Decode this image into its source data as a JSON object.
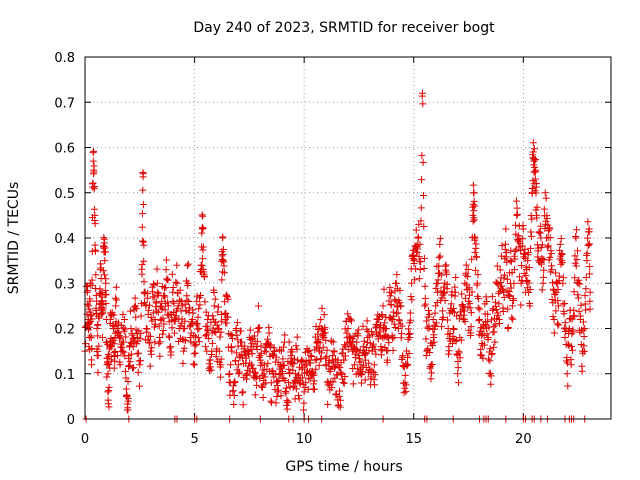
{
  "chart_data": {
    "type": "scatter",
    "title": "Day 240 of 2023, SRMTID for receiver bogt",
    "xlabel": "GPS time / hours",
    "ylabel": "SRMTID / TECUs",
    "xlim": [
      0,
      24
    ],
    "ylim": [
      0,
      0.8
    ],
    "xticks": [
      {
        "value": 0,
        "label": "0"
      },
      {
        "value": 5,
        "label": "5"
      },
      {
        "value": 10,
        "label": "10"
      },
      {
        "value": 15,
        "label": "15"
      },
      {
        "value": 20,
        "label": "20"
      }
    ],
    "yticks": [
      {
        "value": 0,
        "label": "0"
      },
      {
        "value": 0.1,
        "label": "0.1"
      },
      {
        "value": 0.2,
        "label": "0.2"
      },
      {
        "value": 0.3,
        "label": "0.3"
      },
      {
        "value": 0.4,
        "label": "0.4"
      },
      {
        "value": 0.5,
        "label": "0.5"
      },
      {
        "value": 0.6,
        "label": "0.6"
      },
      {
        "value": 0.7,
        "label": "0.7"
      },
      {
        "value": 0.8,
        "label": "0.8"
      }
    ],
    "grid": true,
    "marker": "+",
    "color": "#e00000",
    "series": [
      {
        "name": "SRMTID",
        "points": [
          [
            0.0,
            0.15
          ],
          [
            0.1,
            0.28
          ],
          [
            0.15,
            0.22
          ],
          [
            0.2,
            0.18
          ],
          [
            0.25,
            0.3
          ],
          [
            0.3,
            0.12
          ],
          [
            0.35,
            0.52
          ],
          [
            0.4,
            0.55
          ],
          [
            0.45,
            0.45
          ],
          [
            0.5,
            0.24
          ],
          [
            0.55,
            0.2
          ],
          [
            0.6,
            0.14
          ],
          [
            0.7,
            0.33
          ],
          [
            0.75,
            0.26
          ],
          [
            0.8,
            0.18
          ],
          [
            0.85,
            0.38
          ],
          [
            0.9,
            0.35
          ],
          [
            0.95,
            0.3
          ],
          [
            1.0,
            0.12
          ],
          [
            1.05,
            0.1
          ],
          [
            1.1,
            0.07
          ],
          [
            1.15,
            0.22
          ],
          [
            1.2,
            0.16
          ],
          [
            1.3,
            0.2
          ],
          [
            1.35,
            0.14
          ],
          [
            1.4,
            0.25
          ],
          [
            1.5,
            0.19
          ],
          [
            1.6,
            0.12
          ],
          [
            1.7,
            0.17
          ],
          [
            1.8,
            0.22
          ],
          [
            1.9,
            0.05
          ],
          [
            1.95,
            0.025
          ],
          [
            2.0,
            0.14
          ],
          [
            2.1,
            0.2
          ],
          [
            2.2,
            0.16
          ],
          [
            2.3,
            0.25
          ],
          [
            2.4,
            0.18
          ],
          [
            2.5,
            0.12
          ],
          [
            2.6,
            0.32
          ],
          [
            2.65,
            0.535
          ],
          [
            2.7,
            0.28
          ],
          [
            2.8,
            0.2
          ],
          [
            2.9,
            0.24
          ],
          [
            3.0,
            0.15
          ],
          [
            3.1,
            0.27
          ],
          [
            3.2,
            0.22
          ],
          [
            3.3,
            0.3
          ],
          [
            3.4,
            0.18
          ],
          [
            3.5,
            0.26
          ],
          [
            3.6,
            0.21
          ],
          [
            3.7,
            0.33
          ],
          [
            3.8,
            0.25
          ],
          [
            3.9,
            0.16
          ],
          [
            4.0,
            0.28
          ],
          [
            4.1,
            0.22
          ],
          [
            4.2,
            0.3
          ],
          [
            4.3,
            0.2
          ],
          [
            4.4,
            0.26
          ],
          [
            4.5,
            0.15
          ],
          [
            4.6,
            0.24
          ],
          [
            4.7,
            0.3
          ],
          [
            4.8,
            0.18
          ],
          [
            4.9,
            0.22
          ],
          [
            5.0,
            0.12
          ],
          [
            5.1,
            0.26
          ],
          [
            5.2,
            0.2
          ],
          [
            5.3,
            0.34
          ],
          [
            5.35,
            0.42
          ],
          [
            5.4,
            0.38
          ],
          [
            5.5,
            0.16
          ],
          [
            5.6,
            0.22
          ],
          [
            5.7,
            0.13
          ],
          [
            5.8,
            0.19
          ],
          [
            5.9,
            0.25
          ],
          [
            6.0,
            0.15
          ],
          [
            6.1,
            0.2
          ],
          [
            6.2,
            0.12
          ],
          [
            6.25,
            0.37
          ],
          [
            6.3,
            0.35
          ],
          [
            6.4,
            0.22
          ],
          [
            6.5,
            0.27
          ],
          [
            6.6,
            0.1
          ],
          [
            6.7,
            0.15
          ],
          [
            6.8,
            0.08
          ],
          [
            6.9,
            0.2
          ],
          [
            7.0,
            0.12
          ],
          [
            7.1,
            0.17
          ],
          [
            7.2,
            0.06
          ],
          [
            7.3,
            0.14
          ],
          [
            7.4,
            0.1
          ],
          [
            7.5,
            0.18
          ],
          [
            7.6,
            0.12
          ],
          [
            7.7,
            0.16
          ],
          [
            7.8,
            0.09
          ],
          [
            7.9,
            0.2
          ],
          [
            8.0,
            0.13
          ],
          [
            8.1,
            0.07
          ],
          [
            8.2,
            0.15
          ],
          [
            8.3,
            0.11
          ],
          [
            8.4,
            0.19
          ],
          [
            8.5,
            0.08
          ],
          [
            8.6,
            0.14
          ],
          [
            8.7,
            0.1
          ],
          [
            8.8,
            0.06
          ],
          [
            8.9,
            0.12
          ],
          [
            9.0,
            0.09
          ],
          [
            9.1,
            0.17
          ],
          [
            9.2,
            0.03
          ],
          [
            9.3,
            0.11
          ],
          [
            9.4,
            0.14
          ],
          [
            9.5,
            0.07
          ],
          [
            9.6,
            0.1
          ],
          [
            9.7,
            0.13
          ],
          [
            9.8,
            0.08
          ],
          [
            9.9,
            0.11
          ],
          [
            10.0,
            0.06
          ],
          [
            10.1,
            0.12
          ],
          [
            10.2,
            0.09
          ],
          [
            10.3,
            0.14
          ],
          [
            10.4,
            0.1
          ],
          [
            10.5,
            0.13
          ],
          [
            10.6,
            0.17
          ],
          [
            10.7,
            0.15
          ],
          [
            10.8,
            0.2
          ],
          [
            10.9,
            0.18
          ],
          [
            11.0,
            0.12
          ],
          [
            11.1,
            0.08
          ],
          [
            11.2,
            0.11
          ],
          [
            11.3,
            0.14
          ],
          [
            11.4,
            0.09
          ],
          [
            11.5,
            0.12
          ],
          [
            11.6,
            0.05
          ],
          [
            11.7,
            0.1
          ],
          [
            11.8,
            0.13
          ],
          [
            11.9,
            0.16
          ],
          [
            12.0,
            0.2
          ],
          [
            12.1,
            0.18
          ],
          [
            12.2,
            0.15
          ],
          [
            12.3,
            0.12
          ],
          [
            12.4,
            0.17
          ],
          [
            12.5,
            0.14
          ],
          [
            12.6,
            0.1
          ],
          [
            12.7,
            0.16
          ],
          [
            12.8,
            0.13
          ],
          [
            12.9,
            0.18
          ],
          [
            13.0,
            0.11
          ],
          [
            13.1,
            0.15
          ],
          [
            13.2,
            0.12
          ],
          [
            13.3,
            0.19
          ],
          [
            13.4,
            0.22
          ],
          [
            13.5,
            0.16
          ],
          [
            13.6,
            0.25
          ],
          [
            13.7,
            0.2
          ],
          [
            13.8,
            0.13
          ],
          [
            13.9,
            0.28
          ],
          [
            14.0,
            0.22
          ],
          [
            14.1,
            0.18
          ],
          [
            14.2,
            0.3
          ],
          [
            14.3,
            0.2
          ],
          [
            14.4,
            0.25
          ],
          [
            14.5,
            0.14
          ],
          [
            14.6,
            0.08
          ],
          [
            14.7,
            0.12
          ],
          [
            14.8,
            0.18
          ],
          [
            14.9,
            0.3
          ],
          [
            15.0,
            0.35
          ],
          [
            15.1,
            0.38
          ],
          [
            15.2,
            0.4
          ],
          [
            15.3,
            0.33
          ],
          [
            15.4,
            0.72
          ],
          [
            15.5,
            0.25
          ],
          [
            15.6,
            0.15
          ],
          [
            15.7,
            0.2
          ],
          [
            15.8,
            0.12
          ],
          [
            15.9,
            0.18
          ],
          [
            16.0,
            0.25
          ],
          [
            16.1,
            0.3
          ],
          [
            16.2,
            0.36
          ],
          [
            16.3,
            0.22
          ],
          [
            16.4,
            0.28
          ],
          [
            16.5,
            0.32
          ],
          [
            16.6,
            0.16
          ],
          [
            16.7,
            0.24
          ],
          [
            16.8,
            0.2
          ],
          [
            16.9,
            0.28
          ],
          [
            17.0,
            0.1
          ],
          [
            17.1,
            0.18
          ],
          [
            17.2,
            0.25
          ],
          [
            17.3,
            0.22
          ],
          [
            17.4,
            0.34
          ],
          [
            17.5,
            0.26
          ],
          [
            17.6,
            0.19
          ],
          [
            17.7,
            0.45
          ],
          [
            17.75,
            0.5
          ],
          [
            17.8,
            0.4
          ],
          [
            17.9,
            0.3
          ],
          [
            18.0,
            0.22
          ],
          [
            18.1,
            0.14
          ],
          [
            18.2,
            0.2
          ],
          [
            18.3,
            0.27
          ],
          [
            18.4,
            0.18
          ],
          [
            18.5,
            0.1
          ],
          [
            18.6,
            0.24
          ],
          [
            18.7,
            0.17
          ],
          [
            18.8,
            0.3
          ],
          [
            18.9,
            0.22
          ],
          [
            19.0,
            0.36
          ],
          [
            19.1,
            0.28
          ],
          [
            19.2,
            0.42
          ],
          [
            19.3,
            0.2
          ],
          [
            19.4,
            0.35
          ],
          [
            19.5,
            0.25
          ],
          [
            19.6,
            0.33
          ],
          [
            19.7,
            0.45
          ],
          [
            19.8,
            0.38
          ],
          [
            19.9,
            0.3
          ],
          [
            20.0,
            0.42
          ],
          [
            20.1,
            0.28
          ],
          [
            20.2,
            0.35
          ],
          [
            20.3,
            0.25
          ],
          [
            20.4,
            0.5
          ],
          [
            20.45,
            0.59
          ],
          [
            20.5,
            0.57
          ],
          [
            20.55,
            0.53
          ],
          [
            20.6,
            0.45
          ],
          [
            20.7,
            0.35
          ],
          [
            20.8,
            0.4
          ],
          [
            20.9,
            0.3
          ],
          [
            21.0,
            0.5
          ],
          [
            21.1,
            0.38
          ],
          [
            21.2,
            0.42
          ],
          [
            21.3,
            0.33
          ],
          [
            21.4,
            0.22
          ],
          [
            21.5,
            0.28
          ],
          [
            21.6,
            0.25
          ],
          [
            21.7,
            0.36
          ],
          [
            21.8,
            0.3
          ],
          [
            21.9,
            0.18
          ],
          [
            22.0,
            0.1
          ],
          [
            22.1,
            0.2
          ],
          [
            22.2,
            0.16
          ],
          [
            22.3,
            0.24
          ],
          [
            22.4,
            0.4
          ],
          [
            22.5,
            0.3
          ],
          [
            22.6,
            0.22
          ],
          [
            22.7,
            0.15
          ],
          [
            22.8,
            0.2
          ],
          [
            22.9,
            0.35
          ],
          [
            23.0,
            0.42
          ],
          [
            23.05,
            0.28
          ]
        ]
      }
    ],
    "zero_points_x": [
      0.05,
      2.0,
      4.1,
      4.2,
      5.0,
      5.1,
      6.6,
      8.0,
      9.3,
      9.5,
      10.0,
      10.2,
      10.8,
      13.6,
      15.5,
      15.6,
      16.8,
      18.0,
      18.2,
      18.3,
      18.4,
      19.2,
      20.0,
      20.1,
      20.4,
      20.5,
      20.8,
      21.1,
      21.9,
      22.1,
      22.2,
      22.3,
      22.8
    ]
  }
}
